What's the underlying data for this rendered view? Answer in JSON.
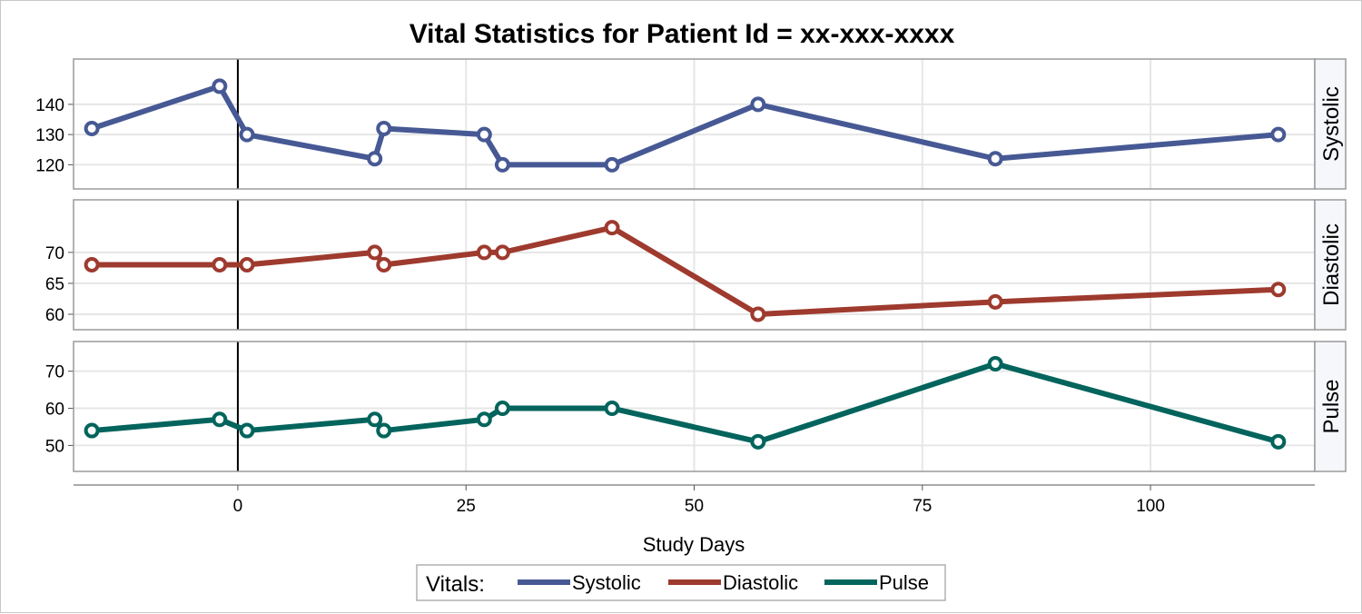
{
  "chart_data": {
    "type": "line",
    "title": "Vital Statistics for Patient Id = xx-xxx-xxxx",
    "xlabel": "Study Days",
    "x_ticks": [
      0,
      25,
      50,
      75,
      100
    ],
    "xlim": [
      -18,
      118
    ],
    "reference_line_x": 0,
    "grid": true,
    "legend": {
      "title": "Vitals:",
      "placement": "bottom",
      "entries": [
        "Systolic",
        "Diastolic",
        "Pulse"
      ]
    },
    "panels": [
      {
        "name": "Systolic",
        "color": "#475994",
        "ylim": [
          112,
          155
        ],
        "y_ticks": [
          120,
          130,
          140
        ],
        "x": [
          -16,
          -2,
          1,
          15,
          16,
          27,
          29,
          41,
          57,
          83,
          114
        ],
        "values": [
          132,
          146,
          130,
          122,
          132,
          130,
          120,
          120,
          140,
          122,
          130
        ]
      },
      {
        "name": "Diastolic",
        "color": "#9E3A2E",
        "ylim": [
          57.5,
          78.5
        ],
        "y_ticks": [
          60,
          65,
          70
        ],
        "x": [
          -16,
          -2,
          1,
          15,
          16,
          27,
          29,
          41,
          57,
          83,
          114
        ],
        "values": [
          68,
          68,
          68,
          70,
          68,
          70,
          70,
          74,
          60,
          62,
          64
        ]
      },
      {
        "name": "Pulse",
        "color": "#02645C",
        "ylim": [
          43,
          78
        ],
        "y_ticks": [
          50,
          60,
          70
        ],
        "x": [
          -16,
          -2,
          1,
          15,
          16,
          27,
          29,
          41,
          57,
          83,
          114
        ],
        "values": [
          54,
          57,
          54,
          57,
          54,
          57,
          60,
          60,
          51,
          72,
          51
        ]
      }
    ]
  }
}
